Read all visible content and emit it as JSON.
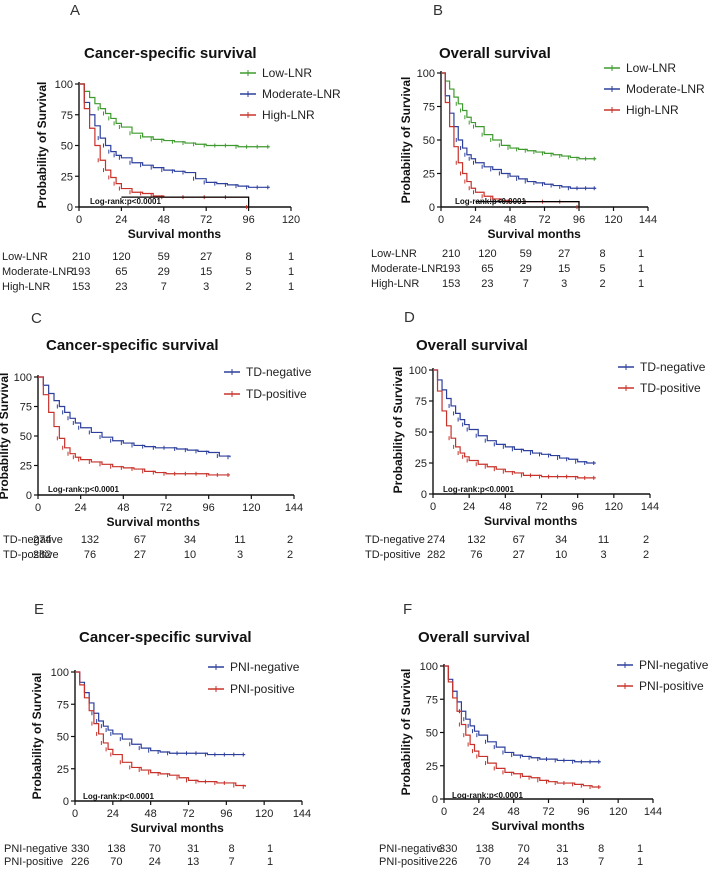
{
  "colors": {
    "green": "#3e9a2f",
    "blue": "#2c3f9c",
    "red": "#c8322a",
    "black": "#000000"
  },
  "common": {
    "ylabel": "Probability of Survival",
    "xlabel": "Survival months",
    "logrank": "Log-rank:p<0.0001",
    "yticks": [
      0,
      25,
      50,
      75,
      100
    ]
  },
  "chart_data": [
    {
      "panel": "A",
      "type": "line",
      "title": "Cancer-specific survival",
      "xlabel": "Survival months",
      "ylabel": "Probability of Survival",
      "xlim": [
        0,
        120
      ],
      "ylim": [
        0,
        100
      ],
      "xticks": [
        0,
        24,
        48,
        72,
        96,
        120
      ],
      "annotation": "Log-rank:p<0.0001",
      "series": [
        {
          "name": "Low-LNR",
          "color": "green",
          "x": [
            0,
            3,
            6,
            9,
            12,
            15,
            18,
            21,
            24,
            30,
            36,
            42,
            48,
            54,
            60,
            66,
            72,
            78,
            84,
            90,
            96,
            102,
            108
          ],
          "y": [
            100,
            94,
            89,
            84,
            80,
            76,
            72,
            68,
            65,
            60,
            57,
            55,
            54,
            53,
            52,
            51,
            50,
            50,
            50,
            49,
            49,
            49,
            49
          ]
        },
        {
          "name": "Moderate-LNR",
          "color": "blue",
          "x": [
            0,
            3,
            6,
            9,
            12,
            15,
            18,
            21,
            24,
            30,
            36,
            42,
            48,
            54,
            60,
            66,
            72,
            78,
            84,
            90,
            96,
            102,
            108
          ],
          "y": [
            100,
            85,
            75,
            66,
            56,
            50,
            45,
            42,
            40,
            36,
            34,
            32,
            30,
            29,
            28,
            23,
            20,
            19,
            18,
            17,
            16,
            16,
            16
          ]
        },
        {
          "name": "High-LNR",
          "color": "red",
          "x": [
            0,
            3,
            6,
            9,
            12,
            15,
            18,
            21,
            24,
            30,
            36,
            42,
            48,
            60,
            72,
            84,
            96
          ],
          "y": [
            100,
            80,
            64,
            50,
            38,
            30,
            24,
            19,
            15,
            12,
            11,
            9,
            8,
            8,
            8,
            8,
            0
          ]
        },
        {
          "name": "Censor-line",
          "color": "black",
          "x": [
            24,
            96
          ],
          "y": [
            8,
            8
          ]
        }
      ],
      "legend": [
        "Low-LNR",
        "Moderate-LNR",
        "High-LNR"
      ],
      "risk_table": {
        "timepoints": [
          0,
          24,
          48,
          72,
          96,
          120
        ],
        "rows": [
          {
            "label": "Low-LNR",
            "values": [
              "210",
              "120",
              "59",
              "27",
              "8",
              "1"
            ]
          },
          {
            "label": "Moderate-LNR",
            "values": [
              "193",
              "65",
              "29",
              "15",
              "5",
              "1"
            ]
          },
          {
            "label": "High-LNR",
            "values": [
              "153",
              "23",
              "7",
              "3",
              "2",
              "1"
            ]
          }
        ]
      }
    },
    {
      "panel": "B",
      "type": "line",
      "title": "Overall survival",
      "xlabel": "Survival months",
      "ylabel": "Probability of Survival",
      "xlim": [
        0,
        144
      ],
      "ylim": [
        0,
        100
      ],
      "xticks": [
        0,
        24,
        48,
        72,
        96,
        120,
        144
      ],
      "annotation": "Log-rank:p<0.0001",
      "series": [
        {
          "name": "Low-LNR",
          "color": "green",
          "x": [
            0,
            3,
            6,
            9,
            12,
            15,
            18,
            21,
            24,
            30,
            36,
            42,
            48,
            54,
            60,
            66,
            72,
            78,
            84,
            90,
            96,
            102,
            108
          ],
          "y": [
            100,
            94,
            88,
            82,
            77,
            72,
            67,
            63,
            60,
            54,
            50,
            46,
            44,
            43,
            42,
            41,
            40,
            39,
            38,
            37,
            36,
            36,
            36
          ]
        },
        {
          "name": "Moderate-LNR",
          "color": "blue",
          "x": [
            0,
            3,
            6,
            9,
            12,
            15,
            18,
            21,
            24,
            30,
            36,
            42,
            48,
            54,
            60,
            66,
            72,
            78,
            84,
            90,
            96,
            102,
            108
          ],
          "y": [
            100,
            83,
            70,
            60,
            50,
            44,
            39,
            36,
            33,
            30,
            28,
            25,
            23,
            21,
            19,
            18,
            17,
            16,
            15,
            14,
            14,
            14,
            14
          ]
        },
        {
          "name": "High-LNR",
          "color": "red",
          "x": [
            0,
            3,
            6,
            9,
            12,
            15,
            18,
            21,
            24,
            30,
            36,
            42,
            48,
            60,
            72,
            84,
            96
          ],
          "y": [
            100,
            78,
            60,
            45,
            33,
            25,
            19,
            14,
            11,
            8,
            6,
            5,
            4,
            4,
            4,
            4,
            0
          ]
        },
        {
          "name": "Censor-line",
          "color": "black",
          "x": [
            24,
            96
          ],
          "y": [
            4,
            4
          ]
        }
      ],
      "legend": [
        "Low-LNR",
        "Moderate-LNR",
        "High-LNR"
      ],
      "risk_table": {
        "timepoints": [
          0,
          24,
          48,
          72,
          96,
          120
        ],
        "rows": [
          {
            "label": "Low-LNR",
            "values": [
              "210",
              "120",
              "59",
              "27",
              "8",
              "1"
            ]
          },
          {
            "label": "Moderate-LNR",
            "values": [
              "193",
              "65",
              "29",
              "15",
              "5",
              "1"
            ]
          },
          {
            "label": "High-LNR",
            "values": [
              "153",
              "23",
              "7",
              "3",
              "2",
              "1"
            ]
          }
        ]
      }
    },
    {
      "panel": "C",
      "type": "line",
      "title": "Cancer-specific survival",
      "xlabel": "Survival months",
      "ylabel": "Probability of Survival",
      "xlim": [
        0,
        144
      ],
      "ylim": [
        0,
        100
      ],
      "xticks": [
        0,
        24,
        48,
        72,
        96,
        120,
        144
      ],
      "annotation": "Log-rank:p<0.0001",
      "series": [
        {
          "name": "TD-negative",
          "color": "blue",
          "x": [
            0,
            3,
            6,
            9,
            12,
            15,
            18,
            21,
            24,
            30,
            36,
            42,
            48,
            54,
            60,
            66,
            72,
            78,
            84,
            90,
            96,
            102,
            108
          ],
          "y": [
            100,
            93,
            86,
            80,
            75,
            70,
            65,
            61,
            57,
            53,
            49,
            46,
            44,
            42,
            41,
            40,
            40,
            39,
            38,
            37,
            36,
            33,
            32
          ]
        },
        {
          "name": "TD-positive",
          "color": "red",
          "x": [
            0,
            3,
            6,
            9,
            12,
            15,
            18,
            21,
            24,
            30,
            36,
            42,
            48,
            54,
            60,
            66,
            72,
            78,
            84,
            90,
            96,
            102,
            108
          ],
          "y": [
            100,
            85,
            70,
            58,
            48,
            40,
            35,
            32,
            30,
            28,
            26,
            24,
            23,
            22,
            20,
            19,
            18,
            18,
            18,
            18,
            17,
            17,
            17
          ]
        }
      ],
      "legend": [
        "TD-negative",
        "TD-positive"
      ],
      "risk_table": {
        "timepoints": [
          0,
          24,
          48,
          72,
          96,
          120
        ],
        "rows": [
          {
            "label": "TD-negative",
            "values": [
              "274",
              "132",
              "67",
              "34",
              "11",
              "2"
            ]
          },
          {
            "label": "TD-positive",
            "values": [
              "282",
              "76",
              "27",
              "10",
              "3",
              "2"
            ]
          }
        ]
      }
    },
    {
      "panel": "D",
      "type": "line",
      "title": "Overall survival",
      "xlabel": "Survival months",
      "ylabel": "Probability of Survival",
      "xlim": [
        0,
        144
      ],
      "ylim": [
        0,
        100
      ],
      "xticks": [
        0,
        24,
        48,
        72,
        96,
        120,
        144
      ],
      "annotation": "Log-rank:p<0.0001",
      "series": [
        {
          "name": "TD-negative",
          "color": "blue",
          "x": [
            0,
            3,
            6,
            9,
            12,
            15,
            18,
            21,
            24,
            30,
            36,
            42,
            48,
            54,
            60,
            66,
            72,
            78,
            84,
            90,
            96,
            102,
            108
          ],
          "y": [
            100,
            92,
            84,
            77,
            71,
            65,
            60,
            56,
            52,
            47,
            43,
            40,
            38,
            36,
            35,
            33,
            32,
            31,
            29,
            28,
            26,
            25,
            25
          ]
        },
        {
          "name": "TD-positive",
          "color": "red",
          "x": [
            0,
            3,
            6,
            9,
            12,
            15,
            18,
            21,
            24,
            30,
            36,
            42,
            48,
            54,
            60,
            66,
            72,
            78,
            84,
            90,
            96,
            102,
            108
          ],
          "y": [
            100,
            83,
            67,
            55,
            45,
            38,
            33,
            30,
            27,
            24,
            22,
            20,
            18,
            17,
            15,
            15,
            14,
            14,
            14,
            14,
            13,
            13,
            13
          ]
        }
      ],
      "legend": [
        "TD-negative",
        "TD-positive"
      ],
      "risk_table": {
        "timepoints": [
          0,
          24,
          48,
          72,
          96,
          120
        ],
        "rows": [
          {
            "label": "TD-negative",
            "values": [
              "274",
              "132",
              "67",
              "34",
              "11",
              "2"
            ]
          },
          {
            "label": "TD-positive",
            "values": [
              "282",
              "76",
              "27",
              "10",
              "3",
              "2"
            ]
          }
        ]
      }
    },
    {
      "panel": "E",
      "type": "line",
      "title": "Cancer-specific survival",
      "xlabel": "Survival months",
      "ylabel": "Probability of Survival",
      "xlim": [
        0,
        144
      ],
      "ylim": [
        0,
        100
      ],
      "xticks": [
        0,
        24,
        48,
        72,
        96,
        120,
        144
      ],
      "annotation": "Log-rank:p<0.0001",
      "series": [
        {
          "name": "PNI-negative",
          "color": "blue",
          "x": [
            0,
            3,
            6,
            9,
            12,
            15,
            18,
            21,
            24,
            30,
            36,
            42,
            48,
            54,
            60,
            66,
            72,
            78,
            84,
            90,
            96,
            102,
            108
          ],
          "y": [
            100,
            92,
            84,
            76,
            68,
            62,
            58,
            55,
            52,
            48,
            44,
            41,
            39,
            38,
            37,
            37,
            37,
            37,
            36,
            36,
            36,
            36,
            36
          ]
        },
        {
          "name": "PNI-positive",
          "color": "red",
          "x": [
            0,
            3,
            6,
            9,
            12,
            15,
            18,
            21,
            24,
            30,
            36,
            42,
            48,
            54,
            60,
            66,
            72,
            78,
            84,
            90,
            96,
            102,
            108
          ],
          "y": [
            100,
            90,
            80,
            70,
            60,
            52,
            45,
            40,
            36,
            30,
            26,
            24,
            22,
            21,
            20,
            18,
            16,
            15,
            15,
            14,
            14,
            12,
            11
          ]
        }
      ],
      "legend": [
        "PNI-negative",
        "PNI-positive"
      ],
      "risk_table": {
        "timepoints": [
          0,
          24,
          48,
          72,
          96,
          120
        ],
        "rows": [
          {
            "label": "PNI-negative",
            "values": [
              "330",
              "138",
              "70",
              "31",
              "8",
              "1"
            ]
          },
          {
            "label": "PNI-positive",
            "values": [
              "226",
              "70",
              "24",
              "13",
              "7",
              "1"
            ]
          }
        ]
      }
    },
    {
      "panel": "F",
      "type": "line",
      "title": "Overall survival",
      "xlabel": "Survival months",
      "ylabel": "Probability of Survival",
      "xlim": [
        0,
        144
      ],
      "ylim": [
        0,
        100
      ],
      "xticks": [
        0,
        24,
        48,
        72,
        96,
        120,
        144
      ],
      "annotation": "Log-rank:p<0.0001",
      "series": [
        {
          "name": "PNI-negative",
          "color": "blue",
          "x": [
            0,
            3,
            6,
            9,
            12,
            15,
            18,
            21,
            24,
            30,
            36,
            42,
            48,
            54,
            60,
            66,
            72,
            78,
            84,
            90,
            96,
            102,
            108
          ],
          "y": [
            100,
            90,
            81,
            73,
            66,
            60,
            55,
            51,
            48,
            43,
            39,
            35,
            33,
            32,
            31,
            30,
            30,
            29,
            29,
            28,
            28,
            28,
            28
          ]
        },
        {
          "name": "PNI-positive",
          "color": "red",
          "x": [
            0,
            3,
            6,
            9,
            12,
            15,
            18,
            21,
            24,
            30,
            36,
            42,
            48,
            54,
            60,
            66,
            72,
            78,
            84,
            90,
            96,
            102,
            108
          ],
          "y": [
            100,
            88,
            76,
            66,
            56,
            48,
            41,
            36,
            32,
            27,
            23,
            20,
            19,
            17,
            16,
            14,
            13,
            12,
            12,
            11,
            10,
            9,
            9
          ]
        }
      ],
      "legend": [
        "PNI-negative",
        "PNI-positive"
      ],
      "risk_table": {
        "timepoints": [
          0,
          24,
          48,
          72,
          96,
          120
        ],
        "rows": [
          {
            "label": "PNI-negative",
            "values": [
              "330",
              "138",
              "70",
              "31",
              "8",
              "1"
            ]
          },
          {
            "label": "PNI-positive",
            "values": [
              "226",
              "70",
              "24",
              "13",
              "7",
              "1"
            ]
          }
        ]
      }
    }
  ]
}
